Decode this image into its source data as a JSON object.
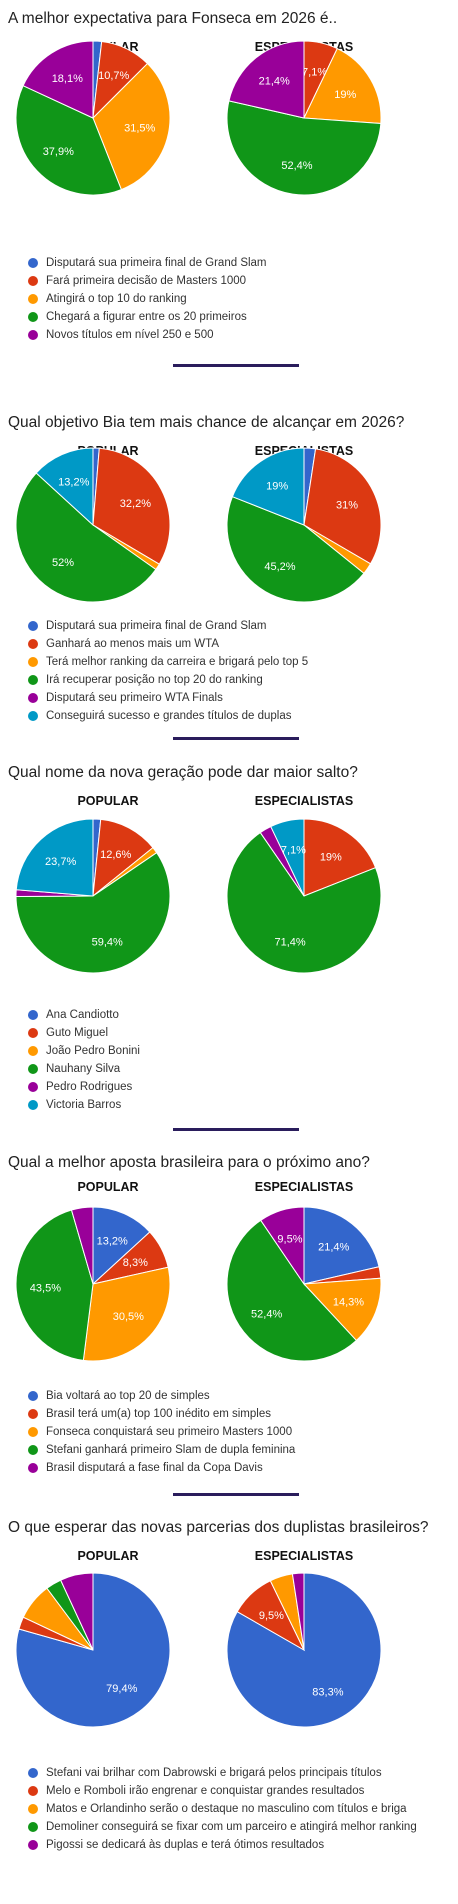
{
  "colors": {
    "blue": "#3366cc",
    "red": "#dc3912",
    "orange": "#ff9900",
    "green": "#109618",
    "purple": "#990099",
    "teal": "#0099c6"
  },
  "columns": {
    "popular": "POPULAR",
    "specialists": "ESPECIALISTAS"
  },
  "chart_data": [
    {
      "type": "pie",
      "title": "A melhor expectativa para Fonseca em 2026 é..",
      "categories": [
        "Disputará sua primeira final de Grand Slam",
        "Fará primeira decisão de Masters 1000",
        "Atingirá o top 10 do ranking",
        "Chegará a figurar entre os 20 primeiros",
        "Novos títulos em nível 250 e 500"
      ],
      "colors": [
        "blue",
        "red",
        "orange",
        "green",
        "purple"
      ],
      "series": [
        {
          "name": "POPULAR",
          "values": [
            1.8,
            10.7,
            31.5,
            37.9,
            18.1
          ],
          "labels": [
            "",
            "10,7%",
            "31,5%",
            "37,9%",
            "18,1%"
          ]
        },
        {
          "name": "ESPECIALISTAS",
          "values": [
            0,
            7.1,
            19,
            52.4,
            21.4
          ],
          "labels": [
            "",
            "7,1%",
            "19%",
            "52,4%",
            "21,4%"
          ]
        }
      ]
    },
    {
      "type": "pie",
      "title": "Qual objetivo Bia tem mais chance de alcançar em 2026?",
      "categories": [
        "Disputará sua primeira final de Grand Slam",
        "Ganhará ao menos mais um WTA",
        "Terá melhor ranking da carreira e brigará pelo top 5",
        "Irá recuperar posição no top 20 do ranking",
        "Disputará seu primeiro WTA Finals",
        "Conseguirá sucesso e grandes títulos de duplas"
      ],
      "colors": [
        "blue",
        "red",
        "orange",
        "green",
        "purple",
        "teal"
      ],
      "series": [
        {
          "name": "POPULAR",
          "values": [
            1.3,
            32.2,
            1.3,
            52,
            0,
            13.2
          ],
          "labels": [
            "",
            "32,2%",
            "",
            "52%",
            "",
            "13,2%"
          ]
        },
        {
          "name": "ESPECIALISTAS",
          "values": [
            2.4,
            31,
            2.4,
            45.2,
            0,
            19
          ],
          "labels": [
            "",
            "31%",
            "",
            "45,2%",
            "",
            "19%"
          ]
        }
      ]
    },
    {
      "type": "pie",
      "title": "Qual nome da nova geração pode dar maior salto?",
      "categories": [
        "Ana Candiotto",
        "Guto Miguel",
        "João Pedro Bonini",
        "Nauhany Silva",
        "Pedro Rodrigues",
        "Victoria Barros"
      ],
      "colors": [
        "blue",
        "red",
        "orange",
        "green",
        "purple",
        "teal"
      ],
      "series": [
        {
          "name": "POPULAR",
          "values": [
            1.6,
            12.6,
            1.3,
            59.4,
            1.4,
            23.7
          ],
          "labels": [
            "",
            "12,6%",
            "",
            "59,4%",
            "",
            "23,7%"
          ]
        },
        {
          "name": "ESPECIALISTAS",
          "values": [
            0,
            19,
            0,
            71.4,
            2.5,
            7.1
          ],
          "labels": [
            "",
            "19%",
            "",
            "71,4%",
            "",
            "7,1%"
          ]
        }
      ]
    },
    {
      "type": "pie",
      "title": "Qual a melhor aposta brasileira para o próximo ano?",
      "categories": [
        "Bia voltará ao top 20 de simples",
        "Brasil terá um(a) top 100 inédito em simples",
        "Fonseca conquistará seu primeiro Masters 1000",
        "Stefani ganhará primeiro Slam de dupla feminina",
        "Brasil disputará a fase final da Copa Davis"
      ],
      "colors": [
        "blue",
        "red",
        "orange",
        "green",
        "purple"
      ],
      "series": [
        {
          "name": "POPULAR",
          "values": [
            13.2,
            8.3,
            30.5,
            43.5,
            4.5
          ],
          "labels": [
            "13,2%",
            "8,3%",
            "30,5%",
            "43,5%",
            ""
          ]
        },
        {
          "name": "ESPECIALISTAS",
          "values": [
            21.4,
            2.4,
            14.3,
            52.4,
            9.5
          ],
          "labels": [
            "21,4%",
            "",
            "14,3%",
            "52,4%",
            "9,5%"
          ]
        }
      ]
    },
    {
      "type": "pie",
      "title": "O que esperar das novas parcerias dos duplistas brasileiros?",
      "categories": [
        "Stefani vai brilhar com Dabrowski e brigará pelos principais títulos",
        "Melo e Romboli irão engrenar e conquistar grandes resultados",
        "Matos e Orlandinho serão o destaque no masculino com títulos e briga",
        "Demoliner conseguirá se fixar com um parceiro e atingirá melhor ranking",
        "Pigossi se dedicará às duplas e terá ótimos resultados"
      ],
      "colors": [
        "blue",
        "red",
        "orange",
        "green",
        "purple"
      ],
      "series": [
        {
          "name": "POPULAR",
          "values": [
            79.4,
            2.6,
            7.8,
            3.3,
            6.9
          ],
          "labels": [
            "79,4%",
            "",
            "",
            "",
            ""
          ]
        },
        {
          "name": "ESPECIALISTAS",
          "values": [
            83.3,
            9.5,
            4.8,
            0,
            2.4
          ],
          "labels": [
            "83,3%",
            "9,5%",
            "",
            "",
            ""
          ]
        }
      ]
    }
  ]
}
